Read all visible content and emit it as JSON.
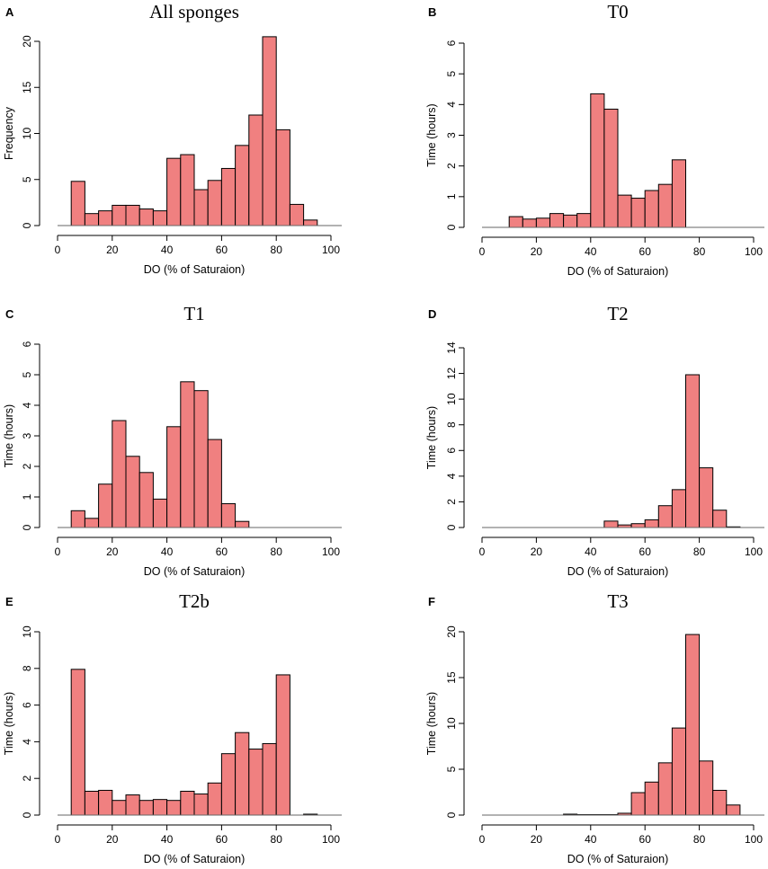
{
  "chart_data": [
    {
      "type": "bar",
      "panel": "A",
      "title": "All sponges",
      "xlabel": "DO (% of Saturaion)",
      "ylabel": "Frequency",
      "xlim": [
        0,
        100
      ],
      "ylim": [
        0,
        20
      ],
      "xticks": [
        0,
        20,
        40,
        60,
        80,
        100
      ],
      "yticks": [
        0,
        5,
        10,
        15,
        20
      ],
      "bin_width": 5,
      "bin_starts": [
        5,
        10,
        15,
        20,
        25,
        30,
        35,
        40,
        45,
        50,
        55,
        60,
        65,
        70,
        75,
        80,
        85,
        90
      ],
      "values": [
        4.8,
        1.3,
        1.6,
        2.2,
        2.2,
        1.8,
        1.6,
        7.3,
        7.7,
        3.9,
        4.9,
        6.2,
        8.7,
        12.0,
        20.5,
        10.4,
        2.3,
        0.6
      ]
    },
    {
      "type": "bar",
      "panel": "B",
      "title": "T0",
      "xlabel": "DO (% of Saturaion)",
      "ylabel": "Time (hours)",
      "xlim": [
        0,
        100
      ],
      "ylim": [
        0,
        6
      ],
      "xticks": [
        0,
        20,
        40,
        60,
        80,
        100
      ],
      "yticks": [
        0,
        1,
        2,
        3,
        4,
        5,
        6
      ],
      "bin_width": 5,
      "bin_starts": [
        10,
        15,
        20,
        25,
        30,
        35,
        40,
        45,
        50,
        55,
        60,
        65,
        70
      ],
      "values": [
        0.35,
        0.27,
        0.3,
        0.45,
        0.4,
        0.45,
        4.35,
        3.85,
        1.05,
        0.95,
        1.2,
        1.4,
        2.2
      ]
    },
    {
      "type": "bar",
      "panel": "C",
      "title": "T1",
      "xlabel": "DO (% of Saturaion)",
      "ylabel": "Time (hours)",
      "xlim": [
        0,
        100
      ],
      "ylim": [
        0,
        6
      ],
      "xticks": [
        0,
        20,
        40,
        60,
        80,
        100
      ],
      "yticks": [
        0,
        1,
        2,
        3,
        4,
        5,
        6
      ],
      "bin_width": 5,
      "bin_starts": [
        5,
        10,
        15,
        20,
        25,
        30,
        35,
        40,
        45,
        50,
        55,
        60,
        65
      ],
      "values": [
        0.55,
        0.3,
        1.42,
        3.5,
        2.33,
        1.8,
        0.93,
        3.3,
        4.77,
        4.48,
        2.88,
        0.78,
        0.2
      ]
    },
    {
      "type": "bar",
      "panel": "D",
      "title": "T2",
      "xlabel": "DO (% of Saturaion)",
      "ylabel": "Time (hours)",
      "xlim": [
        0,
        100
      ],
      "ylim": [
        0,
        14
      ],
      "xticks": [
        0,
        20,
        40,
        60,
        80,
        100
      ],
      "yticks": [
        0,
        2,
        4,
        6,
        8,
        10,
        12,
        14
      ],
      "bin_width": 5,
      "bin_starts": [
        45,
        50,
        55,
        60,
        65,
        70,
        75,
        80,
        85,
        90
      ],
      "values": [
        0.5,
        0.2,
        0.3,
        0.6,
        1.7,
        2.95,
        11.9,
        4.65,
        1.35,
        0.05
      ]
    },
    {
      "type": "bar",
      "panel": "E",
      "title": "T2b",
      "xlabel": "DO (% of Saturaion)",
      "ylabel": "Time (hours)",
      "xlim": [
        0,
        100
      ],
      "ylim": [
        0,
        10
      ],
      "xticks": [
        0,
        20,
        40,
        60,
        80,
        100
      ],
      "yticks": [
        0,
        2,
        4,
        6,
        8,
        10
      ],
      "bin_width": 5,
      "bin_starts": [
        5,
        10,
        15,
        20,
        25,
        30,
        35,
        40,
        45,
        50,
        55,
        60,
        65,
        70,
        75,
        80,
        90
      ],
      "values": [
        7.95,
        1.3,
        1.35,
        0.8,
        1.1,
        0.8,
        0.85,
        0.8,
        1.3,
        1.15,
        1.75,
        3.35,
        4.5,
        3.6,
        3.9,
        7.65,
        0.05
      ]
    },
    {
      "type": "bar",
      "panel": "F",
      "title": "T3",
      "xlabel": "DO (% of Saturaion)",
      "ylabel": "Time (hours)",
      "xlim": [
        0,
        100
      ],
      "ylim": [
        0,
        20
      ],
      "xticks": [
        0,
        20,
        40,
        60,
        80,
        100
      ],
      "yticks": [
        0,
        5,
        10,
        15,
        20
      ],
      "bin_width": 5,
      "bin_starts": [
        30,
        35,
        40,
        45,
        50,
        55,
        60,
        65,
        70,
        75,
        80,
        85,
        90
      ],
      "values": [
        0.1,
        0.05,
        0.05,
        0.05,
        0.2,
        2.45,
        3.6,
        5.7,
        9.5,
        19.7,
        5.9,
        2.7,
        1.1
      ]
    }
  ]
}
